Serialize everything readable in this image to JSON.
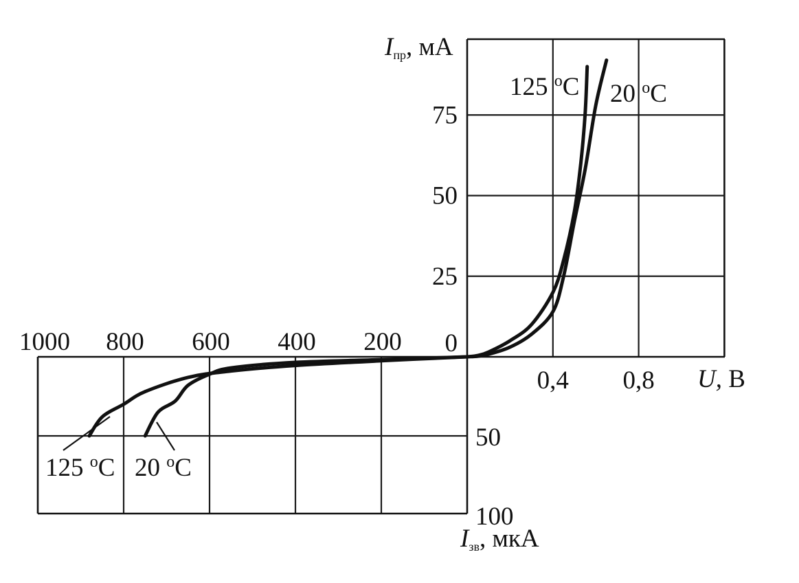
{
  "chart_data": {
    "type": "line",
    "axes": {
      "y_forward": {
        "symbol": "I",
        "subscript": "пр",
        "unit": ", мА",
        "ticks": [
          "75",
          "50",
          "25",
          "0"
        ],
        "range": [
          0,
          100
        ]
      },
      "x_forward": {
        "symbol": "U,",
        "unit": " В",
        "ticks": [
          "0,4",
          "0,8"
        ],
        "range": [
          0,
          1.2
        ]
      },
      "x_reverse": {
        "ticks": [
          "1000",
          "800",
          "600",
          "400",
          "200"
        ],
        "range": [
          0,
          1000
        ]
      },
      "y_reverse": {
        "symbol": "I",
        "subscript": "зв",
        "unit": ", мкА",
        "ticks": [
          "50",
          "100"
        ],
        "range": [
          0,
          100
        ]
      }
    },
    "grid": true,
    "series": [
      {
        "name": "125 °C",
        "forward": [
          [
            0,
            0
          ],
          [
            0.05,
            0.4
          ],
          [
            0.1,
            1.5
          ],
          [
            0.2,
            5
          ],
          [
            0.3,
            10
          ],
          [
            0.4,
            20
          ],
          [
            0.45,
            30
          ],
          [
            0.5,
            45
          ],
          [
            0.53,
            60
          ],
          [
            0.55,
            75
          ],
          [
            0.56,
            90
          ]
        ],
        "reverse": [
          [
            0,
            0
          ],
          [
            200,
            2.5
          ],
          [
            400,
            5.5
          ],
          [
            550,
            9
          ],
          [
            650,
            13
          ],
          [
            750,
            22
          ],
          [
            800,
            30
          ],
          [
            850,
            38
          ],
          [
            880,
            50
          ]
        ]
      },
      {
        "name": "20 °C",
        "forward": [
          [
            0,
            0
          ],
          [
            0.05,
            0.2
          ],
          [
            0.1,
            0.8
          ],
          [
            0.2,
            3
          ],
          [
            0.3,
            7
          ],
          [
            0.4,
            14
          ],
          [
            0.45,
            25
          ],
          [
            0.5,
            42
          ],
          [
            0.55,
            58
          ],
          [
            0.6,
            78
          ],
          [
            0.65,
            92
          ]
        ],
        "reverse": [
          [
            0,
            0
          ],
          [
            200,
            1.8
          ],
          [
            400,
            3.5
          ],
          [
            550,
            7
          ],
          [
            600,
            11
          ],
          [
            650,
            18
          ],
          [
            680,
            28
          ],
          [
            720,
            35
          ],
          [
            750,
            50
          ]
        ]
      }
    ],
    "labels": {
      "forward_125": {
        "text": "125 ",
        "sup": "o",
        "unit": "C"
      },
      "forward_20": {
        "text": "20 ",
        "sup": "o",
        "unit": "C"
      },
      "reverse_125": {
        "text": "125 ",
        "sup": "o",
        "unit": "C"
      },
      "reverse_20": {
        "text": "20 ",
        "sup": "o",
        "unit": "C"
      }
    }
  }
}
